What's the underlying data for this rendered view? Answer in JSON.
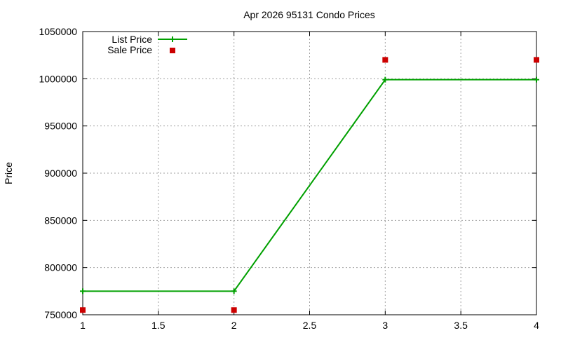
{
  "chart_data": {
    "type": "line",
    "title": "Apr 2026 95131 Condo Prices",
    "xlabel": "",
    "ylabel": "Price",
    "xlim": [
      1,
      4
    ],
    "ylim": [
      750000,
      1050000
    ],
    "grid": true,
    "legend_position": "top-left",
    "x_ticks": [
      "1",
      "1.5",
      "2",
      "2.5",
      "3",
      "3.5",
      "4"
    ],
    "y_ticks": [
      "750000",
      "800000",
      "850000",
      "900000",
      "950000",
      "1000000",
      "1050000"
    ],
    "series": [
      {
        "name": "List Price",
        "style": "linespoints",
        "color": "#00a000",
        "x": [
          1,
          2,
          3,
          4
        ],
        "values": [
          775000,
          775000,
          999000,
          999000
        ]
      },
      {
        "name": "Sale Price",
        "style": "points",
        "color": "#cc0000",
        "x": [
          1,
          2,
          3,
          4
        ],
        "values": [
          755000,
          755000,
          1020000,
          1020000
        ]
      }
    ]
  }
}
